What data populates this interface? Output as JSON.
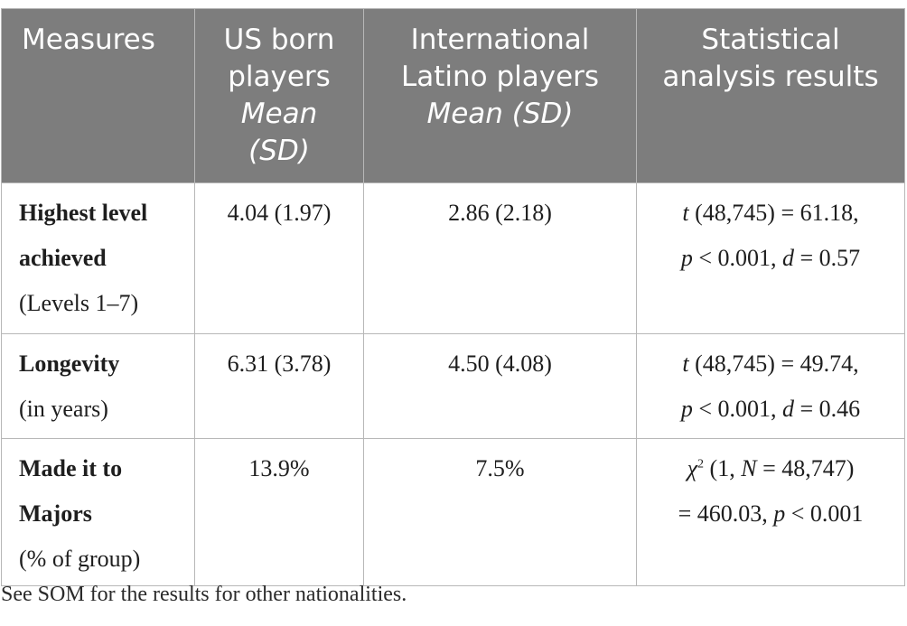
{
  "headers": {
    "measures": "Measures",
    "us_line1": "US born",
    "us_line2": "players",
    "us_italic1": "Mean",
    "us_italic2": "(SD)",
    "intl_line1": "International",
    "intl_line2": "Latino players",
    "intl_italic": "Mean (SD)",
    "stat_line1": "Statistical",
    "stat_line2": "analysis results"
  },
  "rows": [
    {
      "label_bold1": "Highest level",
      "label_bold2": "achieved",
      "label_sub": "(Levels 1–7)",
      "us": "4.04 (1.97)",
      "intl": "2.86 (2.18)",
      "stat_t_sym": "t",
      "stat_t_rest": " (48,745) = 61.18,",
      "stat_p_sym": "p",
      "stat_p_rest": " < 0.001, ",
      "stat_d_sym": "d",
      "stat_d_rest": " = 0.57"
    },
    {
      "label_bold1": "Longevity",
      "label_sub": "(in years)",
      "us": "6.31 (3.78)",
      "intl": "4.50 (4.08)",
      "stat_t_sym": "t",
      "stat_t_rest": " (48,745) = 49.74,",
      "stat_p_sym": "p",
      "stat_p_rest": " < 0.001, ",
      "stat_d_sym": "d",
      "stat_d_rest": " = 0.46"
    },
    {
      "label_bold1": "Made it to",
      "label_bold2": "Majors",
      "label_sub": "(% of group)",
      "us": "13.9%",
      "intl": "7.5%",
      "stat_chi": "χ",
      "stat_chi_sup": "2",
      "stat_chi_a": " (1, ",
      "stat_n_sym": "N",
      "stat_chi_b": " = 48,747)",
      "stat_line2_a": "= 460.03, ",
      "stat_p_sym": "p",
      "stat_line2_b": " < 0.001"
    }
  ],
  "footnote": "See SOM for the results for other nationalities."
}
